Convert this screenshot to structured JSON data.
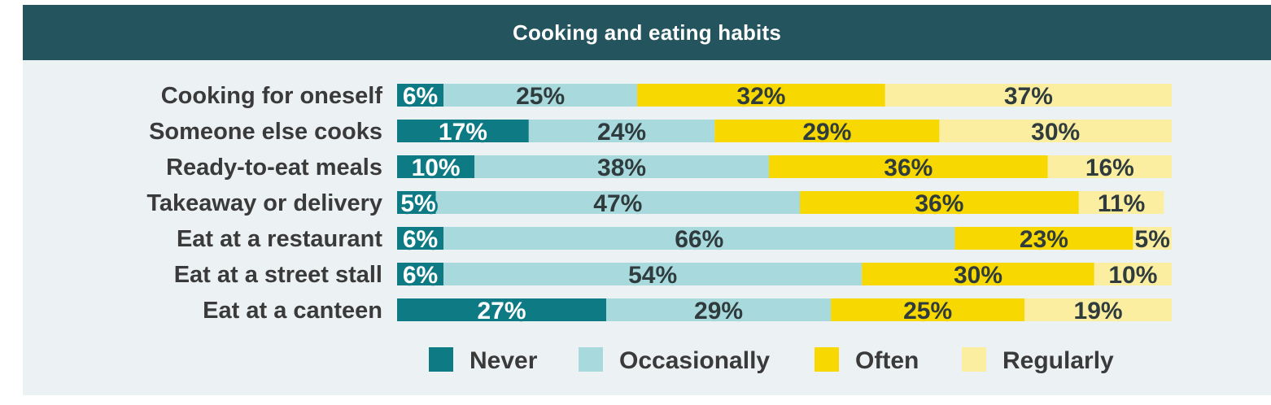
{
  "chart_data": {
    "type": "bar",
    "orientation": "horizontal",
    "stacked": true,
    "title": "Cooking and eating habits",
    "categories": [
      "Cooking for oneself",
      "Someone else cooks",
      "Ready-to-eat meals",
      "Takeaway or delivery",
      "Eat at a restaurant",
      "Eat at a street stall",
      "Eat at a canteen"
    ],
    "series": [
      {
        "name": "Never",
        "color": "#0d7a84",
        "values": [
          6,
          17,
          10,
          5,
          6,
          6,
          27
        ]
      },
      {
        "name": "Occasionally",
        "color": "#a8d9dc",
        "values": [
          25,
          24,
          38,
          47,
          66,
          54,
          29
        ]
      },
      {
        "name": "Often",
        "color": "#f7d800",
        "values": [
          32,
          29,
          36,
          36,
          23,
          30,
          25
        ]
      },
      {
        "name": "Regularly",
        "color": "#fbeea0",
        "values": [
          37,
          30,
          16,
          11,
          5,
          10,
          19
        ]
      }
    ],
    "value_suffix": "%",
    "xlim": [
      0,
      100
    ],
    "legend_position": "bottom"
  }
}
